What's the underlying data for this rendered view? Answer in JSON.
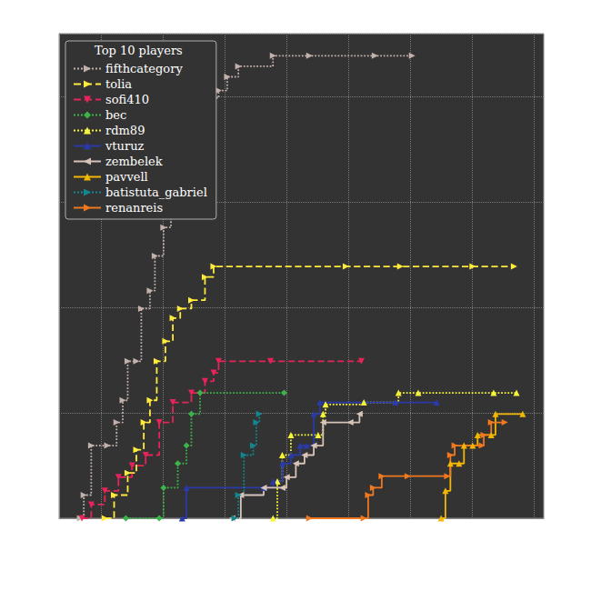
{
  "chart_data": {
    "type": "line",
    "legend_title": "Top 10 players",
    "legend": "upper left",
    "grid": true,
    "tick_labels": false,
    "xlim": [
      0.32,
      8.16
    ],
    "xticks": [
      1,
      2,
      3,
      4,
      5,
      6,
      7,
      8
    ],
    "ylim": [
      0,
      4.6
    ],
    "yticks": [
      0,
      1,
      2,
      3,
      4
    ],
    "series": [
      {
        "name": "fifthcategory",
        "color": "#c2b0ab",
        "line_style": "dotted",
        "marker": "triangle_right",
        "x": [
          0.66,
          0.72,
          0.84,
          1.1,
          1.25,
          1.35,
          1.43,
          1.57,
          1.65,
          1.79,
          1.87,
          2.01,
          2.13,
          2.31,
          2.46,
          2.57,
          2.72,
          2.9,
          3.04,
          3.22,
          3.78,
          4.37,
          5.43,
          6.03
        ],
        "values": [
          0,
          0.22,
          0.69,
          0.69,
          0.91,
          1.12,
          1.49,
          1.49,
          1.99,
          2.16,
          2.49,
          2.76,
          3.07,
          3.39,
          3.49,
          3.8,
          3.99,
          4.06,
          4.19,
          4.29,
          4.39,
          4.39,
          4.39,
          4.39
        ]
      },
      {
        "name": "tolia",
        "color": "#ffeb3b",
        "line_style": "dashed",
        "marker": "triangle_right",
        "x": [
          1.06,
          1.21,
          1.43,
          1.57,
          1.69,
          1.79,
          1.9,
          2.04,
          2.16,
          2.28,
          2.46,
          2.68,
          2.82,
          4.96,
          5.84,
          7.01,
          7.68
        ],
        "values": [
          0,
          0.22,
          0.43,
          0.65,
          0.91,
          1.12,
          1.49,
          1.68,
          1.9,
          1.99,
          2.07,
          2.29,
          2.39,
          2.39,
          2.39,
          2.39,
          2.39
        ]
      },
      {
        "name": "sofi410",
        "color": "#e6245a",
        "line_style": "dashed",
        "marker": "triangle_down",
        "x": [
          0.69,
          0.84,
          1.06,
          1.28,
          1.5,
          1.72,
          1.94,
          2.16,
          2.46,
          2.68,
          2.82,
          2.9,
          3.74,
          5.21
        ],
        "values": [
          0,
          0.13,
          0.26,
          0.39,
          0.5,
          0.6,
          0.91,
          1.1,
          1.19,
          1.3,
          1.38,
          1.49,
          1.49,
          1.49
        ]
      },
      {
        "name": "bec",
        "color": "#3cb44b",
        "line_style": "dotted",
        "marker": "diamond",
        "x": [
          1.4,
          1.94,
          2.01,
          2.24,
          2.38,
          2.46,
          2.6,
          3.96
        ],
        "values": [
          0,
          0,
          0.29,
          0.52,
          0.69,
          0.99,
          1.19,
          1.19
        ]
      },
      {
        "name": "rdm89",
        "color": "#f5f53a",
        "line_style": "dotted",
        "marker": "triangle_up",
        "x": [
          3.78,
          3.85,
          3.93,
          4.07,
          4.51,
          4.59,
          4.63,
          5.25,
          5.81,
          6.13,
          7.35,
          7.72
        ],
        "values": [
          0,
          0.35,
          0.6,
          0.79,
          0.79,
          0.99,
          1.08,
          1.1,
          1.19,
          1.19,
          1.19,
          1.19
        ]
      },
      {
        "name": "vturuz",
        "color": "#2a3aa8",
        "line_style": "solid",
        "marker": "triangle_up",
        "x": [
          2.31,
          2.38,
          3.63,
          3.78,
          3.93,
          4.07,
          4.22,
          4.32,
          4.44,
          4.54,
          5.76,
          6.43
        ],
        "values": [
          0,
          0.29,
          0.29,
          0.35,
          0.52,
          0.6,
          0.69,
          0.69,
          0.99,
          1.1,
          1.1,
          1.1
        ]
      },
      {
        "name": "zembelek",
        "color": "#d8c3b9",
        "line_style": "solid",
        "marker": "triangle_left",
        "x": [
          3.12,
          3.26,
          3.63,
          3.93,
          4.0,
          4.15,
          4.29,
          4.44,
          4.59,
          5.03,
          5.18
        ],
        "values": [
          0,
          0.22,
          0.29,
          0.29,
          0.39,
          0.52,
          0.6,
          0.69,
          0.91,
          0.91,
          0.99
        ]
      },
      {
        "name": "pavvell",
        "color": "#f2b705",
        "line_style": "solid",
        "marker": "triangle_up",
        "x": [
          6.5,
          6.57,
          6.65,
          6.79,
          6.87,
          7.01,
          7.09,
          7.31,
          7.38,
          7.82
        ],
        "values": [
          0,
          0.26,
          0.52,
          0.52,
          0.69,
          0.69,
          0.79,
          0.79,
          0.99,
          0.99
        ]
      },
      {
        "name": "batistuta_gabriel",
        "color": "#12878f",
        "line_style": "dotted",
        "marker": "triangle_right",
        "x": [
          3.16,
          3.22,
          3.31,
          3.46,
          3.51,
          3.56
        ],
        "values": [
          0,
          0.22,
          0.6,
          0.69,
          0.91,
          0.99
        ]
      },
      {
        "name": "renanreis",
        "color": "#f0781e",
        "line_style": "solid",
        "marker": "triangle_right",
        "x": [
          4.37,
          5.25,
          5.32,
          5.4,
          5.54,
          5.96,
          6.6,
          6.65,
          6.72,
          7.16,
          7.19,
          7.31,
          7.53
        ],
        "values": [
          0,
          0,
          0.22,
          0.29,
          0.4,
          0.4,
          0.4,
          0.6,
          0.69,
          0.69,
          0.79,
          0.91,
          0.91
        ]
      }
    ]
  }
}
